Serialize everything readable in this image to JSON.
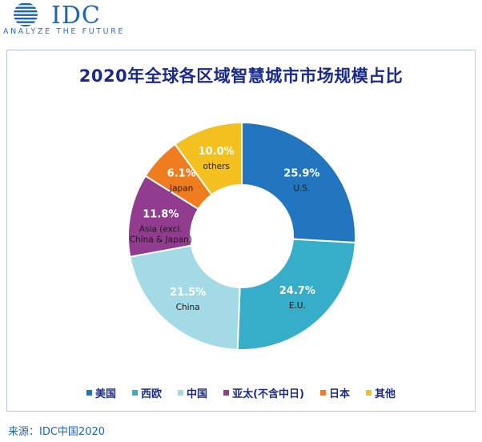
{
  "brand": {
    "name": "IDC",
    "tagline": "ANALYZE THE FUTURE"
  },
  "source": "来源：IDC中国2020",
  "chart_data": {
    "type": "pie",
    "variant": "donut",
    "title": "2020年全球各区域智慧城市市场规模占比",
    "legend_position": "bottom",
    "unit": "%",
    "slices": [
      {
        "legend": "美国",
        "label": "U.S.",
        "value": 25.9,
        "value_label": "25.9%",
        "color": "#2276c0"
      },
      {
        "legend": "西欧",
        "label": "E.U.",
        "value": 24.7,
        "value_label": "24.7%",
        "color": "#36adc9"
      },
      {
        "legend": "中国",
        "label": "China",
        "value": 21.5,
        "value_label": "21.5%",
        "color": "#a4dae5"
      },
      {
        "legend": "亚太(不含中日)",
        "label_lines": [
          "Asia (excl.",
          "China & Japan)"
        ],
        "value": 11.8,
        "value_label": "11.8%",
        "color": "#913c8f"
      },
      {
        "legend": "日本",
        "label": "Japan",
        "value": 6.1,
        "value_label": "6.1%",
        "color": "#ef7d1f"
      },
      {
        "legend": "其他",
        "label": "others",
        "value": 10.0,
        "value_label": "10.0%",
        "color": "#f3c01f"
      }
    ]
  }
}
